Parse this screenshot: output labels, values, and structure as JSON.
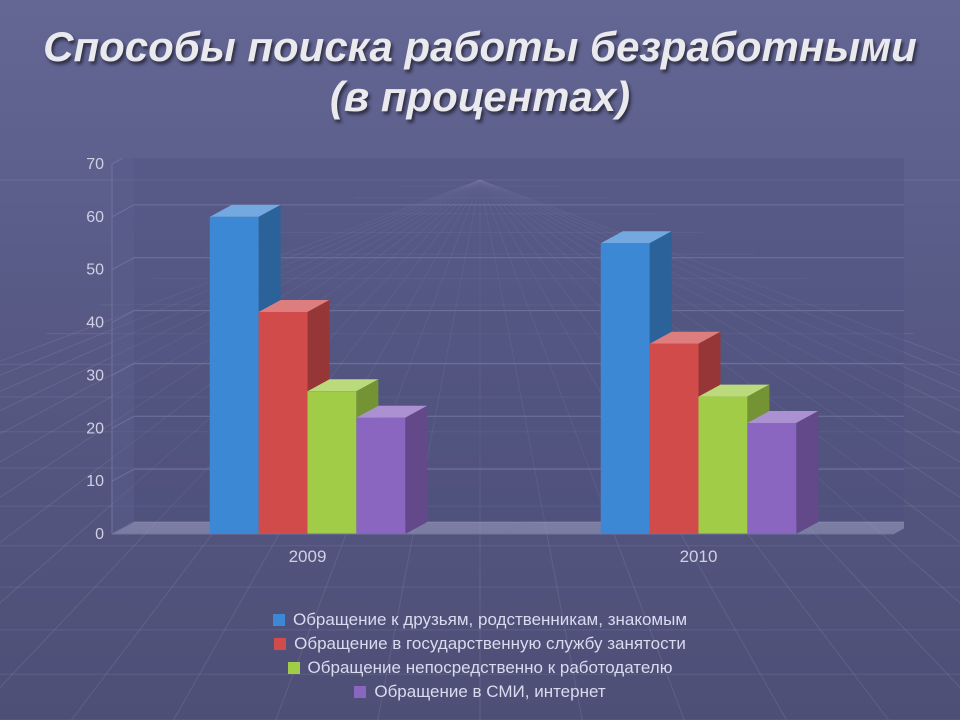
{
  "title": "Способы поиска работы безработными (в процентах)",
  "chart": {
    "type": "bar",
    "categories": [
      "2009",
      "2010"
    ],
    "series": [
      {
        "name": "Обращение к друзьям, родственникам, знакомым",
        "color": "#3c88d4",
        "values": [
          60,
          55
        ]
      },
      {
        "name": "Обращение в государственную службу занятости",
        "color": "#d14b4b",
        "values": [
          42,
          36
        ]
      },
      {
        "name": "Обращение непосредственно к работодателю",
        "color": "#a0cc48",
        "values": [
          27,
          26
        ]
      },
      {
        "name": "Обращение в СМИ, интернет",
        "color": "#8a66c0",
        "values": [
          22,
          21
        ]
      }
    ],
    "ylim": [
      0,
      70
    ],
    "ytick_step": 10,
    "label_fontsize": 16,
    "tick_color": "#cfd0e4",
    "grid_back_color": "#4c4f7f",
    "grid_back_line": "#70739c",
    "floor_3d_color": "#9d9fc1",
    "floor_3d_shade": "#797ba5",
    "wall_3d_color": "#585b8a",
    "wall_3d_shade": "#4a4d78",
    "inner_width": 760,
    "inner_height": 370,
    "bar_group_gap": 0.25,
    "bar_gap": 0.0,
    "depth_x": 22,
    "depth_y": 12
  },
  "legend": {
    "items": [
      {
        "swatch": "#3c88d4",
        "label": "Обращение к друзьям, родственникам, знакомым"
      },
      {
        "swatch": "#d14b4b",
        "label": "Обращение в государственную службу занятости"
      },
      {
        "swatch": "#a0cc48",
        "label": "Обращение непосредственно к работодателю"
      },
      {
        "swatch": "#8a66c0",
        "label": "Обращение в СМИ, интернет"
      }
    ]
  },
  "background": {
    "grid_line_color": "#8f91b3"
  }
}
